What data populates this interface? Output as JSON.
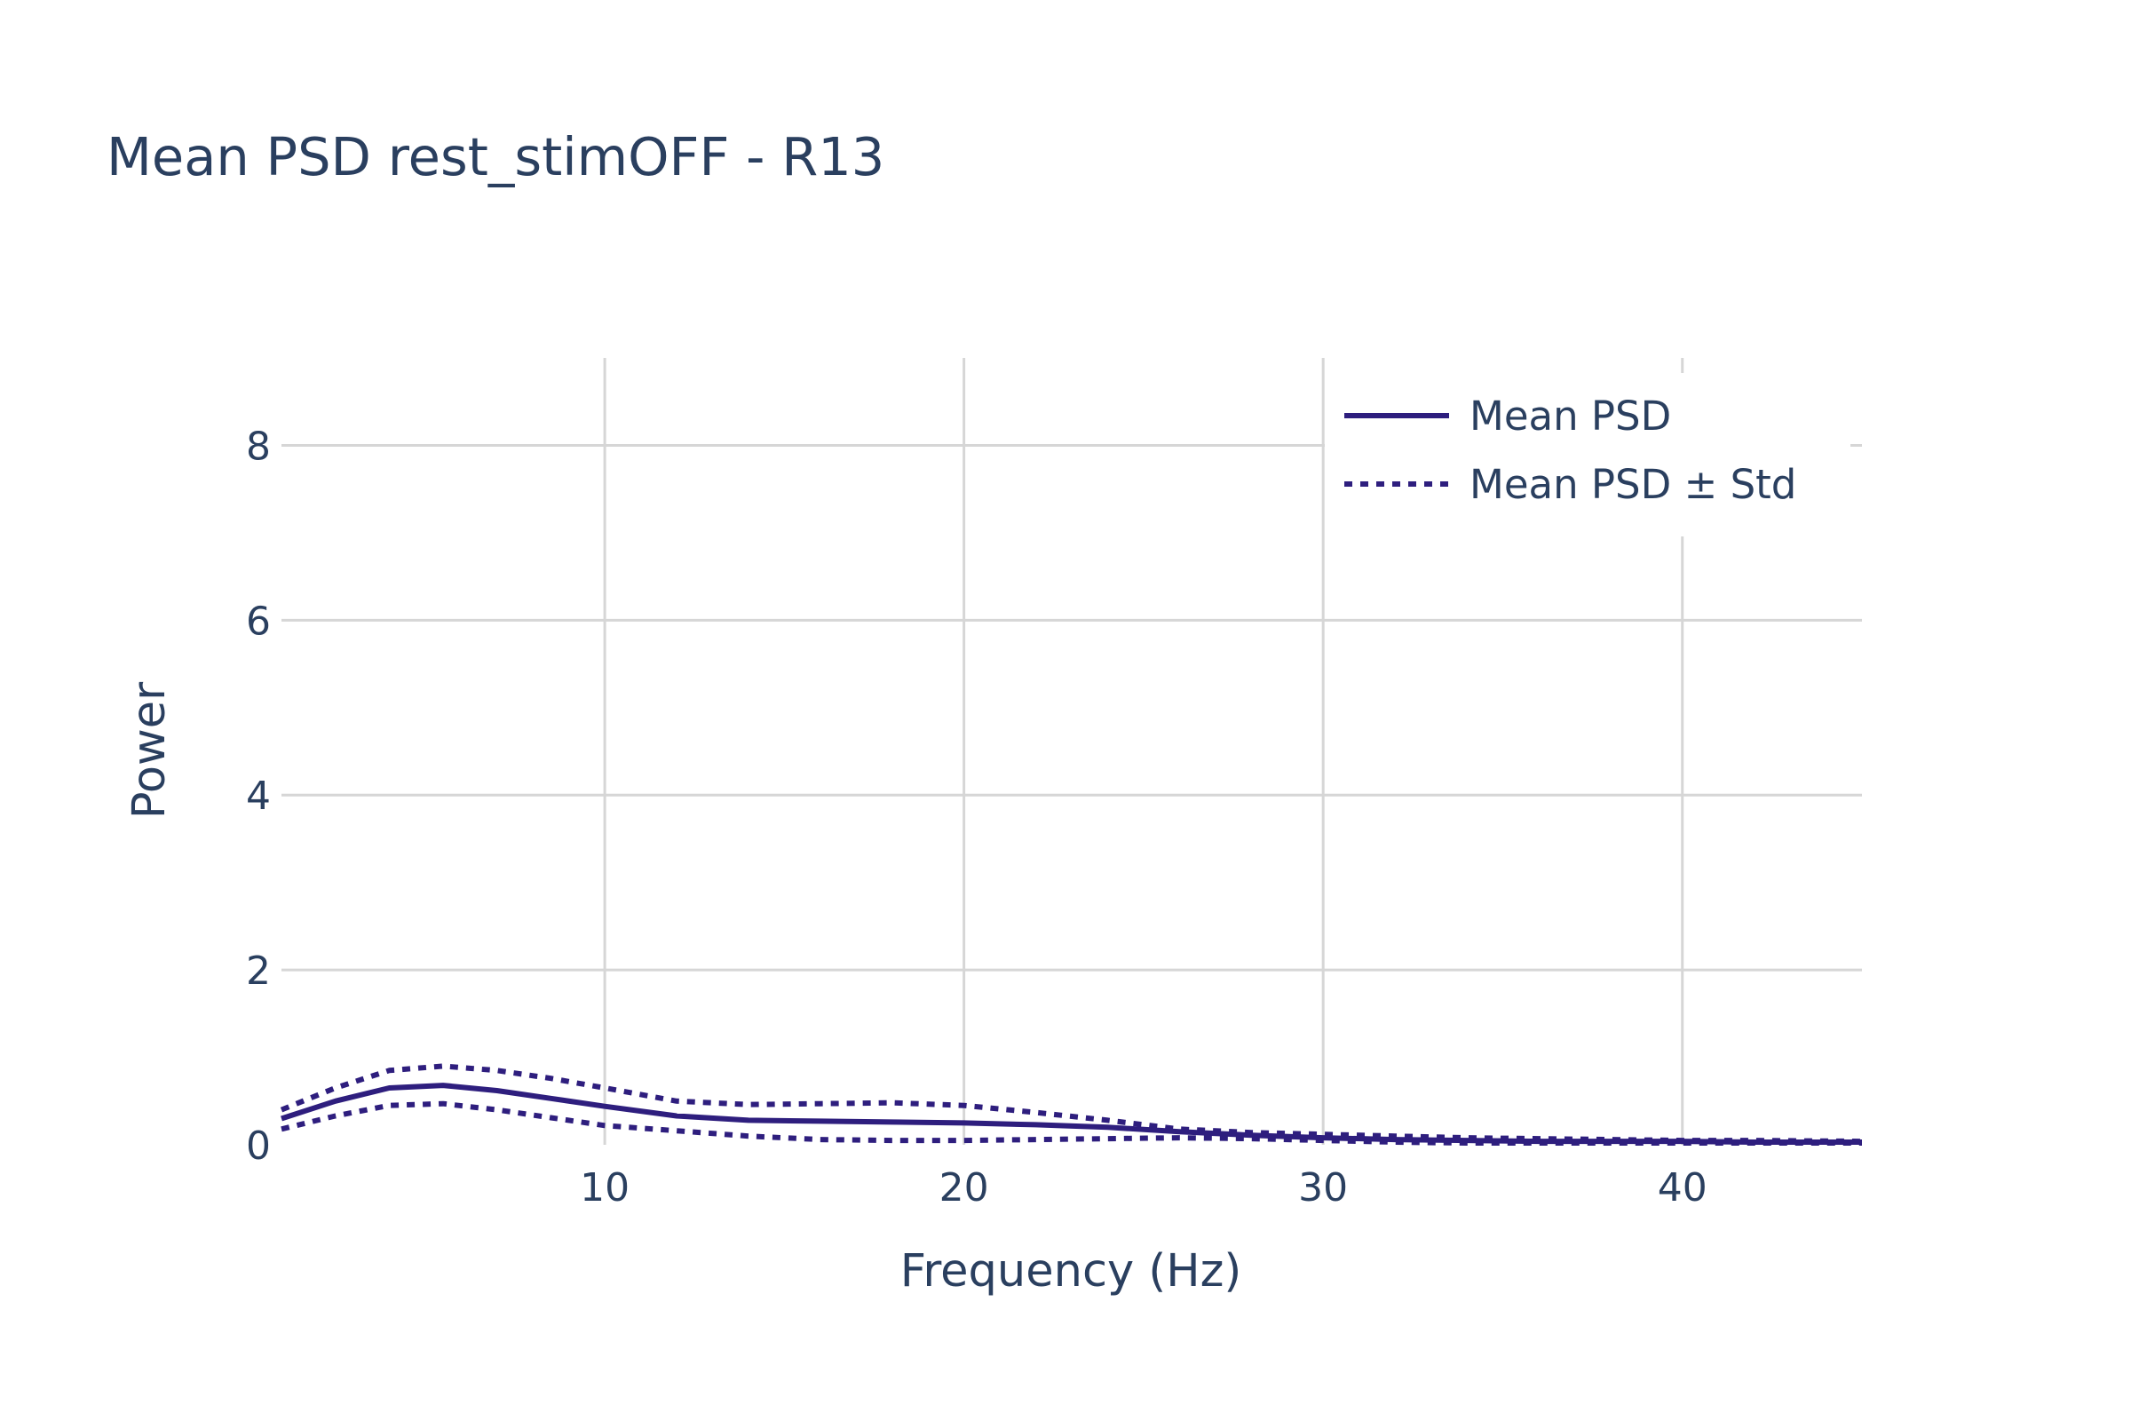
{
  "chart_data": {
    "type": "line",
    "title": "Mean PSD rest_stimOFF - R13",
    "xlabel": "Frequency (Hz)",
    "ylabel": "Power",
    "xlim": [
      1,
      45
    ],
    "ylim": [
      0,
      9
    ],
    "xticks": [
      10,
      20,
      30,
      40
    ],
    "yticks": [
      0,
      2,
      4,
      6,
      8
    ],
    "grid": true,
    "legend_position": "top-right",
    "colors": {
      "series": "#2e1e7e",
      "text": "#2a3f5f",
      "grid": "#d6d6d6"
    },
    "series": [
      {
        "name": "Mean PSD",
        "line_style": "solid",
        "x": [
          1,
          2.5,
          4,
          5.5,
          7,
          8.5,
          10,
          12,
          14,
          16,
          18,
          20,
          22,
          24,
          26,
          28,
          30,
          32,
          34,
          36,
          38,
          40,
          42,
          45
        ],
        "y": [
          0.3,
          0.5,
          0.65,
          0.68,
          0.62,
          0.53,
          0.44,
          0.33,
          0.28,
          0.27,
          0.26,
          0.25,
          0.23,
          0.2,
          0.15,
          0.11,
          0.08,
          0.06,
          0.05,
          0.04,
          0.04,
          0.04,
          0.03,
          0.03
        ]
      },
      {
        "name": "Mean PSD ± Std",
        "line_style": "dot",
        "x": [
          1,
          2.5,
          4,
          5.5,
          7,
          8.5,
          10,
          12,
          14,
          16,
          18,
          20,
          22,
          24,
          26,
          28,
          30,
          32,
          34,
          36,
          38,
          40,
          42,
          45
        ],
        "y": [
          0.4,
          0.65,
          0.85,
          0.9,
          0.85,
          0.76,
          0.65,
          0.5,
          0.46,
          0.47,
          0.48,
          0.45,
          0.37,
          0.28,
          0.18,
          0.14,
          0.12,
          0.1,
          0.08,
          0.07,
          0.06,
          0.05,
          0.05,
          0.04
        ]
      },
      {
        "line_style": "dot",
        "x": [
          1,
          2.5,
          4,
          5.5,
          7,
          8.5,
          10,
          12,
          14,
          16,
          18,
          20,
          22,
          24,
          26,
          28,
          30,
          32,
          34,
          36,
          38,
          40,
          42,
          45
        ],
        "y": [
          0.18,
          0.33,
          0.45,
          0.47,
          0.4,
          0.31,
          0.22,
          0.16,
          0.1,
          0.06,
          0.05,
          0.05,
          0.06,
          0.07,
          0.08,
          0.07,
          0.05,
          0.03,
          0.02,
          0.02,
          0.02,
          0.02,
          0.02,
          0.02
        ]
      }
    ]
  }
}
